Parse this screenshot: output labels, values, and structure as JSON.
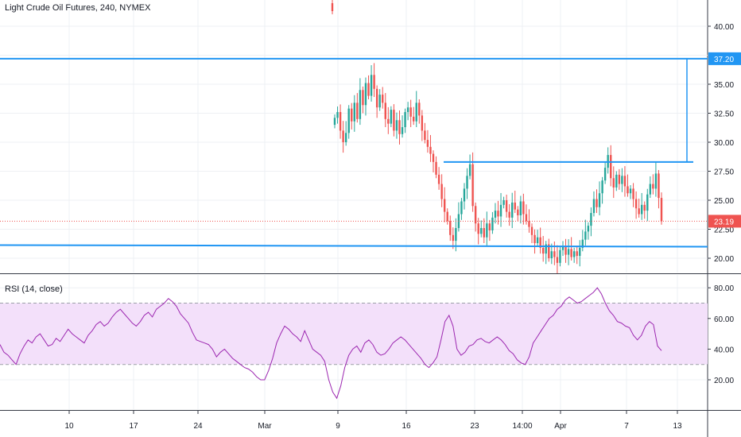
{
  "header": {
    "title": "Light Crude Oil Futures, 240, NYMEX",
    "rsi_title": "RSI (14, close)"
  },
  "colors": {
    "up": "#26a69a",
    "down": "#ef5350",
    "drawing": "#2196f3",
    "rsi_line": "#9c27b0",
    "rsi_band": "#f3e0fa",
    "price_line": "#ef5350"
  },
  "chart_data": [
    {
      "type": "candlestick",
      "title": "Light Crude Oil Futures, 240, NYMEX",
      "x_ticks": [
        "10",
        "17",
        "24",
        "Mar",
        "9",
        "16",
        "23",
        "14:00",
        "Apr",
        "7",
        "13"
      ],
      "y_ticks": [
        "20.00",
        "22.50",
        "25.00",
        "27.50",
        "30.00",
        "32.50",
        "35.00",
        "37.20",
        "40.00"
      ],
      "ylim": [
        18.3,
        42.5
      ],
      "current_price": 23.19,
      "current_price_label": "23.19",
      "horizontal_levels": [
        {
          "value": 37.2,
          "label": "37.20"
        },
        {
          "value": 28.3
        },
        {
          "value": 21.2
        }
      ],
      "measure_line": {
        "from": 28.3,
        "to": 37.2
      },
      "close_series": [
        32.1,
        32.6,
        31.0,
        30.0,
        30.8,
        32.9,
        31.8,
        33.4,
        32.0,
        34.5,
        33.2,
        35.1,
        34.0,
        35.8,
        34.6,
        33.0,
        34.1,
        33.4,
        32.0,
        31.6,
        32.8,
        31.0,
        31.9,
        30.7,
        31.3,
        32.6,
        33.0,
        32.2,
        31.8,
        33.4,
        32.3,
        31.0,
        30.2,
        29.6,
        29.0,
        28.3,
        27.2,
        26.4,
        25.1,
        24.0,
        23.2,
        22.0,
        21.5,
        22.6,
        23.8,
        24.9,
        26.0,
        27.1,
        28.1,
        24.5,
        23.0,
        22.1,
        22.6,
        21.8,
        23.0,
        22.4,
        23.5,
        24.1,
        23.6,
        24.6,
        25.0,
        24.0,
        23.5,
        24.8,
        24.2,
        23.7,
        24.9,
        23.8,
        23.2,
        22.7,
        22.0,
        21.3,
        21.8,
        20.9,
        20.4,
        21.2,
        20.0,
        20.6,
        20.1,
        19.6,
        20.7,
        21.0,
        20.3,
        20.8,
        20.1,
        20.6,
        20.2,
        20.9,
        21.6,
        22.3,
        22.8,
        23.9,
        25.1,
        24.4,
        25.6,
        26.7,
        27.8,
        28.9,
        26.9,
        26.1,
        27.2,
        26.4,
        27.1,
        26.2,
        25.6,
        26.0,
        25.1,
        24.3,
        23.8,
        24.6,
        24.1,
        25.5,
        26.4,
        26.0,
        27.3,
        25.2,
        23.19
      ],
      "x_ranges_px": {
        "comment": "candles span from the 9 Mar tick to just past the 7 Apr tick"
      }
    },
    {
      "type": "line",
      "title": "RSI (14, close)",
      "y_ticks": [
        "20.00",
        "40.00",
        "60.00",
        "80.00"
      ],
      "ylim": [
        0,
        90
      ],
      "bands": [
        30,
        70
      ],
      "values": [
        43,
        38,
        36,
        33,
        30,
        37,
        42,
        46,
        44,
        48,
        50,
        46,
        42,
        43,
        47,
        45,
        49,
        53,
        50,
        48,
        46,
        44,
        49,
        52,
        56,
        58,
        55,
        57,
        61,
        64,
        66,
        63,
        60,
        57,
        55,
        58,
        62,
        64,
        61,
        66,
        68,
        70,
        73,
        71,
        68,
        63,
        60,
        57,
        51,
        46,
        45,
        44,
        43,
        40,
        35,
        38,
        40,
        37,
        34,
        32,
        30,
        28,
        27,
        25,
        22,
        20,
        20,
        26,
        34,
        44,
        50,
        55,
        53,
        50,
        48,
        45,
        52,
        46,
        40,
        38,
        36,
        32,
        20,
        12,
        8,
        16,
        28,
        36,
        40,
        42,
        38,
        44,
        46,
        43,
        38,
        36,
        37,
        40,
        44,
        46,
        48,
        46,
        43,
        40,
        37,
        34,
        30,
        28,
        31,
        35,
        46,
        58,
        62,
        55,
        40,
        36,
        38,
        42,
        43,
        46,
        47,
        45,
        44,
        46,
        48,
        46,
        43,
        39,
        37,
        33,
        31,
        30,
        35,
        44,
        48,
        52,
        56,
        60,
        62,
        66,
        68,
        72,
        74,
        72,
        70,
        71,
        73,
        75,
        77,
        80,
        76,
        70,
        65,
        62,
        58,
        57,
        55,
        54,
        49,
        46,
        49,
        55,
        58,
        56,
        42,
        39
      ],
      "x_ticks": [
        "10",
        "17",
        "24",
        "Mar",
        "9",
        "16",
        "23",
        "14:00",
        "Apr",
        "7",
        "13"
      ]
    }
  ]
}
